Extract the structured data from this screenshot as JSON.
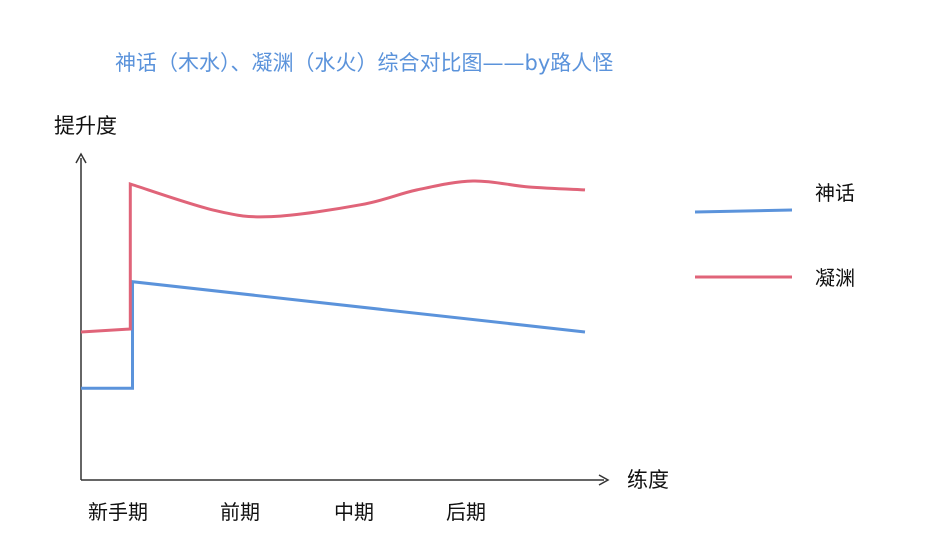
{
  "chart_data": {
    "type": "line",
    "title": "神话（木水）、凝渊（水火）综合对比图——by路人怪",
    "xlabel": "练度",
    "ylabel": "提升度",
    "categories": [
      "新手期",
      "前期",
      "中期",
      "后期"
    ],
    "axis_values": false,
    "grid": false,
    "legend_position": "right",
    "series": [
      {
        "name": "神话",
        "color": "#5B93DB",
        "points": [
          {
            "x": 0.0,
            "y": 0.31
          },
          {
            "x": 0.46,
            "y": 0.31
          },
          {
            "x": 0.46,
            "y": 0.67
          },
          {
            "x": 4.5,
            "y": 0.5
          }
        ]
      },
      {
        "name": "凝渊",
        "color": "#E06479",
        "points": [
          {
            "x": 0.0,
            "y": 0.5
          },
          {
            "x": 0.44,
            "y": 0.51
          },
          {
            "x": 0.44,
            "y": 1.0
          },
          {
            "x": 1.2,
            "y": 0.91
          },
          {
            "x": 1.7,
            "y": 0.89
          },
          {
            "x": 2.5,
            "y": 0.93
          },
          {
            "x": 3.0,
            "y": 0.98
          },
          {
            "x": 3.5,
            "y": 1.01
          },
          {
            "x": 4.0,
            "y": 0.99
          },
          {
            "x": 4.5,
            "y": 0.98
          }
        ]
      }
    ]
  },
  "colors": {
    "title": "#5B93DB",
    "axis": "#333333",
    "text": "#111111"
  }
}
